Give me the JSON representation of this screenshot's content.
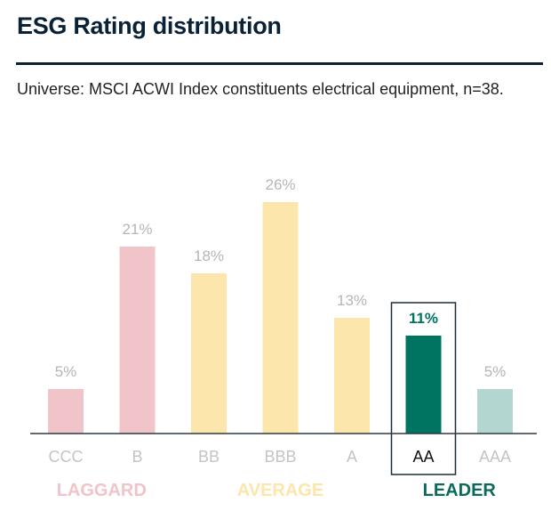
{
  "chart_data": {
    "type": "bar",
    "title": "ESG Rating distribution",
    "subtitle": "Universe: MSCI ACWI Index constituents electrical equipment, n=38.",
    "categories": [
      "CCC",
      "B",
      "BB",
      "BBB",
      "A",
      "AA",
      "AAA"
    ],
    "values": [
      5,
      21,
      18,
      26,
      13,
      11,
      5
    ],
    "value_labels": [
      "5%",
      "21%",
      "18%",
      "26%",
      "13%",
      "11%",
      "5%"
    ],
    "bar_colors": [
      "#f0c4c8",
      "#f0c4c8",
      "#fde6ab",
      "#fde6ab",
      "#fde6ab",
      "#007461",
      "#b3d6d1"
    ],
    "highlighted_category": "AA",
    "highlight_color": "#007461",
    "groups": [
      {
        "label": "LAGGARD",
        "color": "#f0c4c8",
        "categories": [
          "CCC",
          "B"
        ]
      },
      {
        "label": "AVERAGE",
        "color": "#fde6ab",
        "categories": [
          "BB",
          "BBB",
          "A"
        ]
      },
      {
        "label": "LEADER",
        "color": "#0b6b5a",
        "categories": [
          "AA",
          "AAA"
        ]
      }
    ],
    "ylim": [
      0,
      30
    ],
    "grid": false,
    "legend": "none"
  }
}
